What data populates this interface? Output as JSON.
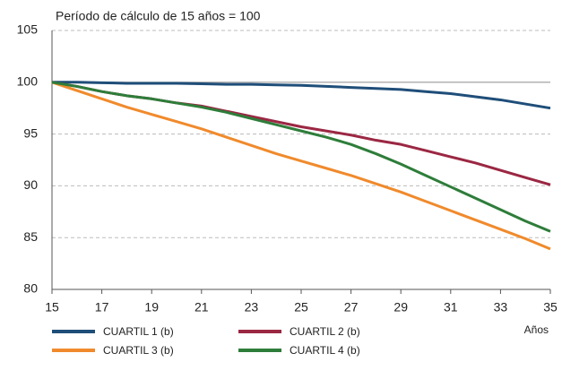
{
  "chart_data": {
    "type": "line",
    "subtitle": "Período de cálculo de 15 años = 100",
    "x_label": "Años",
    "x": [
      15,
      16,
      17,
      18,
      19,
      20,
      21,
      22,
      23,
      24,
      25,
      26,
      27,
      28,
      29,
      30,
      31,
      32,
      33,
      34,
      35
    ],
    "series": [
      {
        "name": "CUARTIL 1 (b)",
        "color": "#1f4e79",
        "values": [
          100,
          100,
          99.95,
          99.9,
          99.9,
          99.9,
          99.85,
          99.8,
          99.8,
          99.75,
          99.7,
          99.6,
          99.5,
          99.4,
          99.3,
          99.1,
          98.9,
          98.6,
          98.3,
          97.9,
          97.5
        ]
      },
      {
        "name": "CUARTIL 2 (b)",
        "color": "#9b2743",
        "values": [
          100,
          99.6,
          99.1,
          98.7,
          98.4,
          98.0,
          97.7,
          97.2,
          96.7,
          96.2,
          95.7,
          95.3,
          94.9,
          94.4,
          94.0,
          93.4,
          92.8,
          92.2,
          91.5,
          90.8,
          90.1
        ]
      },
      {
        "name": "CUARTIL 3 (b)",
        "color": "#f08a2c",
        "values": [
          100,
          99.2,
          98.4,
          97.6,
          96.9,
          96.2,
          95.5,
          94.7,
          93.9,
          93.1,
          92.4,
          91.7,
          91.0,
          90.2,
          89.4,
          88.5,
          87.6,
          86.7,
          85.8,
          84.9,
          83.9
        ]
      },
      {
        "name": "CUARTIL 4 (b)",
        "color": "#2e7d3a",
        "values": [
          100,
          99.6,
          99.1,
          98.7,
          98.4,
          98.0,
          97.6,
          97.1,
          96.5,
          95.9,
          95.3,
          94.7,
          94.0,
          93.1,
          92.1,
          91.0,
          89.9,
          88.8,
          87.7,
          86.6,
          85.6
        ]
      }
    ],
    "xlim": [
      15,
      35
    ],
    "xticks": [
      15,
      17,
      19,
      21,
      23,
      25,
      27,
      29,
      31,
      33,
      35
    ],
    "ylim": [
      80,
      105
    ],
    "yticks": [
      80,
      85,
      90,
      95,
      100,
      105
    ],
    "grid": true,
    "baseline": 100
  }
}
